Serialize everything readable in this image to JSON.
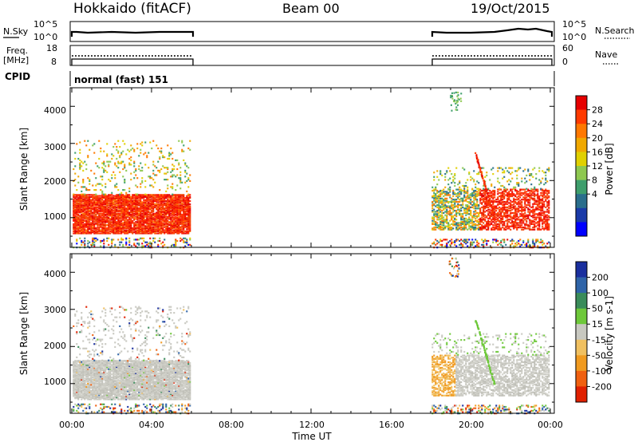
{
  "header": {
    "station": "Hokkaido (fitACF)",
    "beam": "Beam 00",
    "date": "19/Oct/2015"
  },
  "noise_panel": {
    "left_label": "N.Sky",
    "right_label": "N.Search",
    "left_ticks": [
      "10^5",
      "10^0"
    ],
    "right_ticks": [
      "10^5",
      "10^0"
    ]
  },
  "freq_panel": {
    "left_label_1": "Freq.",
    "left_label_2": "[MHz]",
    "right_label": "Nave",
    "left_ticks": [
      "18",
      "8"
    ],
    "right_ticks": [
      "60",
      "0"
    ]
  },
  "cpid": {
    "label": "CPID",
    "value": "normal (fast) 151"
  },
  "chart_data": [
    {
      "type": "heatmap",
      "name": "Power",
      "ylabel": "Slant Range [km]",
      "yticks": [
        "4000",
        "3000",
        "2000",
        "1000"
      ],
      "ylim": [
        200,
        4500
      ],
      "xlim": [
        0,
        24
      ],
      "colorbar_label": "Power [dB]",
      "colorbar_ticks": [
        "28",
        "24",
        "20",
        "16",
        "12",
        "8",
        "4"
      ],
      "colorbar_colors": [
        "#e60000",
        "#ff3a00",
        "#ff7800",
        "#f0a800",
        "#e0d000",
        "#8ec850",
        "#3e9e6c",
        "#2a6e8c",
        "#1a3aa8",
        "#0000ff"
      ],
      "data_intervals_ut": [
        [
          0,
          6
        ],
        [
          18,
          24
        ]
      ]
    },
    {
      "type": "heatmap",
      "name": "Velocity",
      "ylabel": "Slant Range [km]",
      "yticks": [
        "4000",
        "3000",
        "2000",
        "1000"
      ],
      "ylim": [
        200,
        4500
      ],
      "xlim": [
        0,
        24
      ],
      "colorbar_label": "Velocity [m s-1]",
      "colorbar_ticks": [
        "200",
        "100",
        "50",
        "15",
        "-15",
        "-50",
        "-100",
        "-200"
      ],
      "colorbar_colors": [
        "#1a2f9e",
        "#2f64a8",
        "#3a8c5a",
        "#6ec83a",
        "#c8c8c0",
        "#f0c060",
        "#f09a20",
        "#f06010",
        "#e02000"
      ],
      "data_intervals_ut": [
        [
          0,
          6
        ],
        [
          18,
          24
        ]
      ]
    }
  ],
  "x_axis": {
    "label": "Time UT",
    "ticks": [
      "00:00",
      "04:00",
      "08:00",
      "12:00",
      "16:00",
      "20:00",
      "00:00"
    ]
  }
}
